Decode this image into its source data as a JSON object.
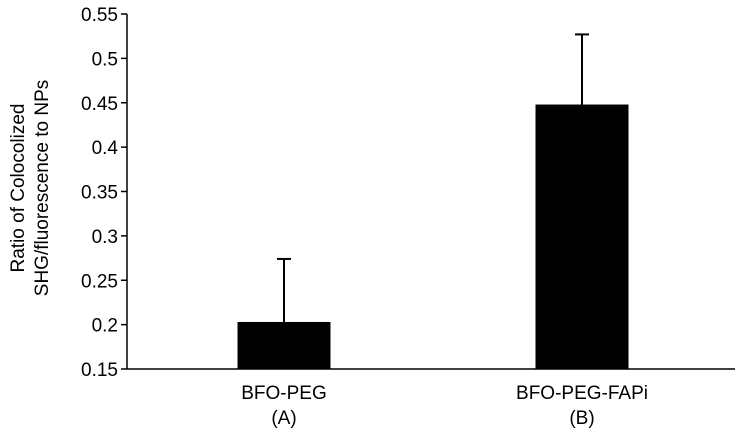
{
  "chart_data": {
    "type": "bar",
    "categories": [
      {
        "label": "BFO-PEG",
        "sublabel": "(A)"
      },
      {
        "label": "BFO-PEG-FAPi",
        "sublabel": "(B)"
      }
    ],
    "values": [
      0.203,
      0.448
    ],
    "error_upper": [
      0.274,
      0.527
    ],
    "ylabel_lines": [
      "Ratio of Colocolized",
      "SHG/fluorescence to NPs"
    ],
    "ylim": [
      0.15,
      0.55
    ],
    "yticks": [
      0.15,
      0.2,
      0.25,
      0.3,
      0.35,
      0.4,
      0.45,
      0.5,
      0.55
    ],
    "ytick_labels": [
      "0.15",
      "0.2",
      "0.25",
      "0.3",
      "0.35",
      "0.4",
      "0.45",
      "0.5",
      "0.55"
    ],
    "grid": false,
    "legend": "none",
    "colors": {
      "bar": "#000000",
      "axis": "#000000",
      "error_bar": "#000000",
      "background": "#ffffff"
    }
  }
}
